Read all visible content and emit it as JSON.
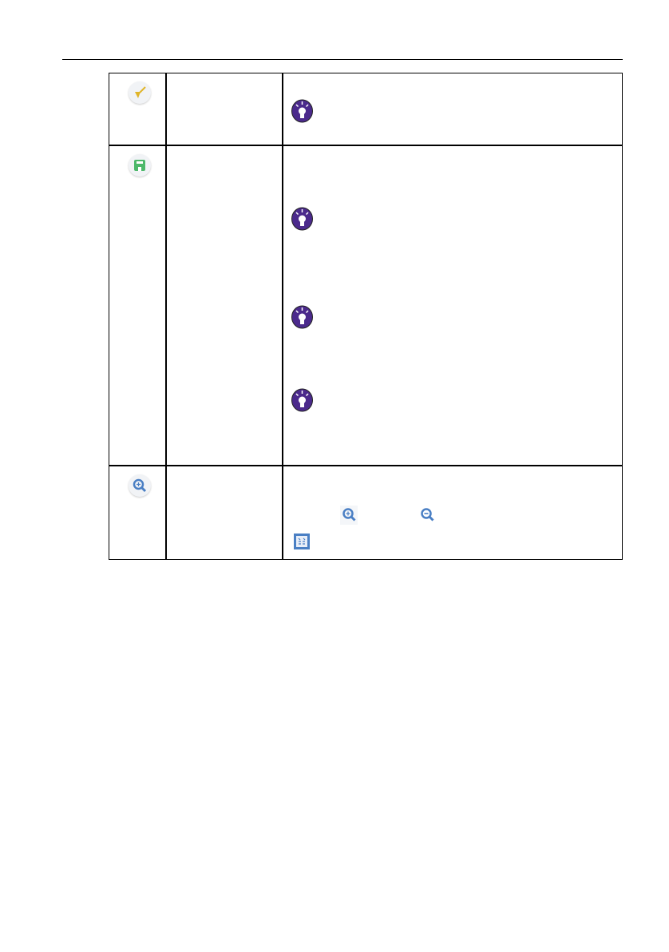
{
  "table": {
    "rows": [
      {
        "icon": "broom-icon",
        "icon_color": "#e0b52a",
        "tips": [
          "lightbulb-icon"
        ]
      },
      {
        "icon": "save-icon",
        "icon_color": "#4cb86a",
        "tips": [
          "lightbulb-icon",
          "lightbulb-icon",
          "lightbulb-icon"
        ]
      },
      {
        "icon": "zoom-in-icon",
        "icon_color": "#4a7fc4",
        "inline_icons": [
          "zoom-in-icon",
          "zoom-out-icon",
          "fit-screen-icon"
        ]
      }
    ]
  },
  "colors": {
    "tip": "#4b2a8c",
    "zoom": "#4a7fc4"
  }
}
